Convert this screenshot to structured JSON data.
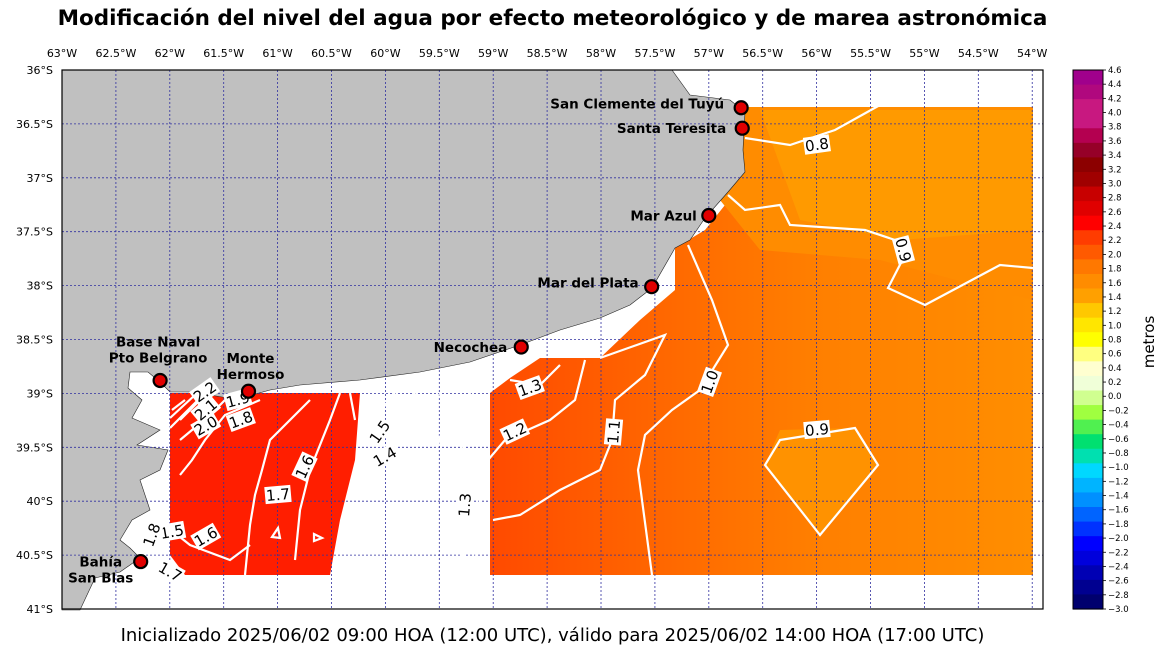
{
  "title": "Modificación del nivel del agua por efecto meteorológico y de marea astronómica",
  "footer": "Inicializado 2025/06/02 09:00 HOA (12:00 UTC), válido para 2025/06/02 14:00 HOA (17:00 UTC)",
  "map": {
    "lon_range": [
      -63.0,
      -53.9
    ],
    "lat_range": [
      -41.0,
      -36.0
    ],
    "lon_ticks": [
      "63°W",
      "62.5°W",
      "62°W",
      "61.5°W",
      "61°W",
      "60.5°W",
      "60°W",
      "59.5°W",
      "59°W",
      "58.5°W",
      "58°W",
      "57.5°W",
      "57°W",
      "56.5°W",
      "56°W",
      "55.5°W",
      "55°W",
      "54.5°W",
      "54°W"
    ],
    "lat_ticks": [
      "36°S",
      "36.5°S",
      "37°S",
      "37.5°S",
      "38°S",
      "38.5°S",
      "39°S",
      "39.5°S",
      "40°S",
      "40.5°S",
      "41°S"
    ],
    "land_color": "#c0c0c0",
    "grid": true
  },
  "stations": [
    {
      "name": "San Clemente del Tuyú",
      "lines": [
        "San Clemente del Tuyú"
      ],
      "lon": -56.7,
      "lat": -36.35
    },
    {
      "name": "Santa Teresita",
      "lines": [
        "Santa Teresita"
      ],
      "lon": -56.69,
      "lat": -36.54
    },
    {
      "name": "Mar Azul",
      "lines": [
        "Mar Azul"
      ],
      "lon": -57.0,
      "lat": -37.35
    },
    {
      "name": "Mar del Plata",
      "lines": [
        "Mar del Plata"
      ],
      "lon": -57.53,
      "lat": -38.01
    },
    {
      "name": "Necochea",
      "lines": [
        "Necochea"
      ],
      "lon": -58.74,
      "lat": -38.57
    },
    {
      "name": "Base Naval Pto Belgrano",
      "lines": [
        "Base Naval",
        "Pto Belgrano"
      ],
      "lon": -62.09,
      "lat": -38.88
    },
    {
      "name": "Monte Hermoso",
      "lines": [
        "Monte",
        "Hermoso"
      ],
      "lon": -61.27,
      "lat": -38.98
    },
    {
      "name": "Bahía San Blas",
      "lines": [
        "Bahía",
        "San Blas"
      ],
      "lon": -62.27,
      "lat": -40.56
    }
  ],
  "contour_labels": [
    "0.8",
    "0.9",
    "0.9",
    "1.0",
    "1.1",
    "1.2",
    "1.3",
    "1.3",
    "1.4",
    "1.5",
    "1.6",
    "1.7",
    "1.8",
    "1.9",
    "2.0",
    "2.1",
    "2.2",
    "1.5",
    "1.6",
    "1.7",
    "1.8"
  ],
  "colorbar": {
    "label": "metros",
    "ticks": [
      "4.6",
      "4.4",
      "4.2",
      "4.0",
      "3.8",
      "3.6",
      "3.4",
      "3.2",
      "3.0",
      "2.8",
      "2.6",
      "2.4",
      "2.2",
      "2.0",
      "1.8",
      "1.6",
      "1.4",
      "1.2",
      "1.0",
      "0.8",
      "0.6",
      "0.4",
      "0.2",
      "0.0",
      "−0.2",
      "−0.4",
      "−0.6",
      "−0.8",
      "−1.0",
      "−1.2",
      "−1.4",
      "−1.6",
      "−1.8",
      "−2.0",
      "−2.2",
      "−2.4",
      "−2.6",
      "−2.8",
      "−3.0"
    ],
    "colors": [
      "#a0008c",
      "#b0087e",
      "#c81880",
      "#c81880",
      "#b40050",
      "#960028",
      "#8c0000",
      "#a00000",
      "#c80000",
      "#e00000",
      "#ff0000",
      "#ff3c00",
      "#ff5a00",
      "#ff7800",
      "#ff8c00",
      "#ffa000",
      "#ffc800",
      "#ffe600",
      "#ffff00",
      "#ffff80",
      "#ffffd0",
      "#f0ffd8",
      "#d0ff90",
      "#a0ff40",
      "#50f050",
      "#00e070",
      "#00e0b0",
      "#00d8ff",
      "#00b4ff",
      "#0090ff",
      "#0064ff",
      "#0032ff",
      "#0000ff",
      "#0000dc",
      "#0000b4",
      "#000090",
      "#00006e"
    ]
  }
}
